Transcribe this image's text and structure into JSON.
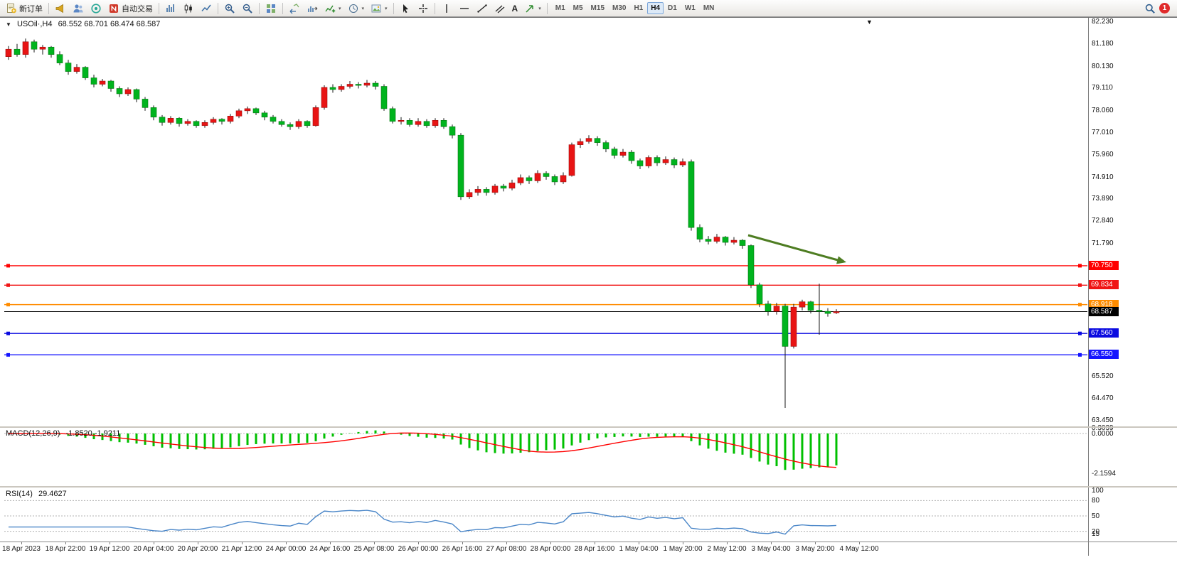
{
  "toolbar": {
    "new_order_label": "新订单",
    "auto_trading_label": "自动交易",
    "text_tool_label": "A",
    "timeframes": [
      "M1",
      "M5",
      "M15",
      "M30",
      "H1",
      "H4",
      "D1",
      "W1",
      "MN"
    ],
    "active_timeframe": "H4",
    "notification_count": "1"
  },
  "chart": {
    "collapse_glyph": "▼",
    "symbol": "USOil·,H4",
    "ohlc": "68.552 68.701 68.474 68.587",
    "price_axis_labels": [
      "82.230",
      "81.180",
      "80.130",
      "79.110",
      "78.060",
      "77.010",
      "75.960",
      "74.910",
      "73.890",
      "72.840",
      "71.790",
      "65.520",
      "64.470",
      "63.450"
    ],
    "price_lines": [
      {
        "price": "70.750",
        "color": "#ff0000"
      },
      {
        "price": "69.834",
        "color": "#f01414"
      },
      {
        "price": "68.918",
        "color": "#ff8c00"
      },
      {
        "price": "67.560",
        "color": "#0a0ae0"
      },
      {
        "price": "66.550",
        "color": "#1414ff"
      }
    ],
    "current_price": {
      "value": "68.587",
      "color": "#000000"
    },
    "colors": {
      "up_candle": "#e81414",
      "up_border": "#9e0b0b",
      "down_candle": "#00b41e",
      "down_border": "#067812",
      "wick": "#1a1a1a",
      "arrow": "#4e7d22"
    },
    "candles": [
      [
        80.6,
        81.1,
        80.45,
        80.95
      ],
      [
        80.95,
        81.2,
        80.6,
        80.7
      ],
      [
        80.7,
        81.45,
        80.55,
        81.3
      ],
      [
        81.3,
        81.4,
        80.8,
        80.95
      ],
      [
        80.95,
        81.15,
        80.7,
        81.05
      ],
      [
        81.05,
        81.1,
        80.55,
        80.7
      ],
      [
        80.7,
        80.85,
        80.2,
        80.3
      ],
      [
        80.3,
        80.45,
        79.75,
        79.9
      ],
      [
        79.9,
        80.25,
        79.8,
        80.1
      ],
      [
        80.1,
        80.15,
        79.5,
        79.6
      ],
      [
        79.6,
        79.75,
        79.15,
        79.3
      ],
      [
        79.3,
        79.55,
        79.2,
        79.45
      ],
      [
        79.45,
        79.5,
        78.95,
        79.1
      ],
      [
        79.1,
        79.2,
        78.7,
        78.85
      ],
      [
        78.85,
        79.15,
        78.75,
        79.05
      ],
      [
        79.05,
        79.1,
        78.45,
        78.6
      ],
      [
        78.6,
        78.7,
        78.05,
        78.2
      ],
      [
        78.2,
        78.3,
        77.6,
        77.75
      ],
      [
        77.75,
        77.85,
        77.35,
        77.5
      ],
      [
        77.5,
        77.8,
        77.4,
        77.7
      ],
      [
        77.7,
        77.75,
        77.3,
        77.45
      ],
      [
        77.45,
        77.65,
        77.35,
        77.55
      ],
      [
        77.55,
        77.6,
        77.25,
        77.35
      ],
      [
        77.35,
        77.6,
        77.25,
        77.5
      ],
      [
        77.5,
        77.75,
        77.4,
        77.65
      ],
      [
        77.65,
        77.7,
        77.4,
        77.55
      ],
      [
        77.55,
        77.9,
        77.45,
        77.8
      ],
      [
        77.8,
        78.15,
        77.7,
        78.05
      ],
      [
        78.05,
        78.25,
        77.9,
        78.15
      ],
      [
        78.15,
        78.2,
        77.85,
        77.95
      ],
      [
        77.95,
        78.05,
        77.6,
        77.75
      ],
      [
        77.75,
        77.85,
        77.45,
        77.55
      ],
      [
        77.55,
        77.65,
        77.3,
        77.4
      ],
      [
        77.4,
        77.5,
        77.15,
        77.3
      ],
      [
        77.3,
        77.65,
        77.2,
        77.55
      ],
      [
        77.55,
        77.6,
        77.25,
        77.35
      ],
      [
        77.35,
        78.3,
        77.3,
        78.2
      ],
      [
        78.2,
        79.25,
        78.1,
        79.15
      ],
      [
        79.15,
        79.3,
        78.9,
        79.05
      ],
      [
        79.05,
        79.3,
        78.95,
        79.2
      ],
      [
        79.2,
        79.45,
        79.1,
        79.3
      ],
      [
        79.3,
        79.4,
        79.1,
        79.25
      ],
      [
        79.25,
        79.5,
        79.15,
        79.35
      ],
      [
        79.35,
        79.45,
        79.05,
        79.2
      ],
      [
        79.2,
        79.3,
        78.05,
        78.15
      ],
      [
        78.15,
        78.25,
        77.45,
        77.55
      ],
      [
        77.55,
        77.75,
        77.4,
        77.6
      ],
      [
        77.6,
        77.7,
        77.3,
        77.4
      ],
      [
        77.4,
        77.7,
        77.3,
        77.55
      ],
      [
        77.55,
        77.65,
        77.25,
        77.35
      ],
      [
        77.35,
        77.7,
        77.25,
        77.6
      ],
      [
        77.6,
        77.7,
        77.2,
        77.3
      ],
      [
        77.3,
        77.4,
        76.75,
        76.9
      ],
      [
        76.9,
        77.0,
        73.85,
        74.0
      ],
      [
        74.0,
        74.35,
        73.9,
        74.2
      ],
      [
        74.2,
        74.5,
        74.05,
        74.35
      ],
      [
        74.35,
        74.45,
        74.05,
        74.2
      ],
      [
        74.2,
        74.6,
        74.1,
        74.5
      ],
      [
        74.5,
        74.6,
        74.25,
        74.4
      ],
      [
        74.4,
        74.8,
        74.3,
        74.65
      ],
      [
        74.65,
        75.05,
        74.55,
        74.9
      ],
      [
        74.9,
        75.0,
        74.6,
        74.75
      ],
      [
        74.75,
        75.25,
        74.65,
        75.1
      ],
      [
        75.1,
        75.2,
        74.8,
        74.95
      ],
      [
        74.95,
        75.05,
        74.55,
        74.7
      ],
      [
        74.7,
        75.15,
        74.6,
        75.0
      ],
      [
        75.0,
        76.55,
        74.95,
        76.45
      ],
      [
        76.45,
        76.75,
        76.3,
        76.6
      ],
      [
        76.6,
        76.9,
        76.5,
        76.75
      ],
      [
        76.75,
        76.85,
        76.4,
        76.55
      ],
      [
        76.55,
        76.65,
        76.1,
        76.25
      ],
      [
        76.25,
        76.35,
        75.8,
        75.95
      ],
      [
        75.95,
        76.25,
        75.85,
        76.1
      ],
      [
        76.1,
        76.2,
        75.55,
        75.7
      ],
      [
        75.7,
        75.8,
        75.3,
        75.45
      ],
      [
        75.45,
        75.95,
        75.35,
        75.85
      ],
      [
        75.85,
        75.95,
        75.45,
        75.6
      ],
      [
        75.6,
        75.9,
        75.5,
        75.75
      ],
      [
        75.75,
        75.85,
        75.35,
        75.5
      ],
      [
        75.5,
        75.8,
        75.4,
        75.65
      ],
      [
        75.65,
        75.75,
        72.4,
        72.55
      ],
      [
        72.55,
        72.7,
        71.85,
        72.0
      ],
      [
        72.0,
        72.15,
        71.75,
        71.9
      ],
      [
        71.9,
        72.25,
        71.8,
        72.1
      ],
      [
        72.1,
        72.15,
        71.7,
        71.85
      ],
      [
        71.85,
        72.1,
        71.75,
        71.95
      ],
      [
        71.95,
        72.0,
        71.55,
        71.7
      ],
      [
        71.7,
        71.75,
        69.7,
        69.85
      ],
      [
        69.85,
        69.95,
        68.8,
        68.95
      ],
      [
        68.95,
        69.1,
        68.4,
        68.6
      ],
      [
        68.6,
        69.0,
        68.45,
        68.85
      ],
      [
        68.85,
        68.95,
        64.05,
        66.95
      ],
      [
        66.95,
        68.95,
        66.85,
        68.8
      ],
      [
        68.8,
        69.15,
        68.65,
        69.05
      ],
      [
        69.05,
        69.1,
        68.5,
        68.65
      ],
      [
        68.65,
        69.9,
        67.5,
        68.6
      ],
      [
        68.6,
        68.75,
        68.35,
        68.5
      ],
      [
        68.552,
        68.701,
        68.474,
        68.587
      ]
    ]
  },
  "macd": {
    "title": "MACD(12,26,9)",
    "values": "-1.8520 -1.9211",
    "scale_labels": [
      "0.3039",
      "0.0000",
      "-2.1594"
    ],
    "histogram_color": "#00c000",
    "signal_color": "#ff0000"
  },
  "rsi": {
    "title": "RSI(14)",
    "value": "29.4627",
    "scale_labels": [
      "100",
      "80",
      "50",
      "20",
      "15"
    ],
    "level_lines": [
      80,
      50,
      20
    ],
    "line_color": "#4a86c8"
  },
  "time_axis": {
    "labels": [
      "18 Apr 2023",
      "18 Apr 22:00",
      "19 Apr 12:00",
      "20 Apr 04:00",
      "20 Apr 20:00",
      "21 Apr 12:00",
      "24 Apr 00:00",
      "24 Apr 16:00",
      "25 Apr 08:00",
      "26 Apr 00:00",
      "26 Apr 16:00",
      "27 Apr 08:00",
      "28 Apr 00:00",
      "28 Apr 16:00",
      "1 May 04:00",
      "1 May 20:00",
      "2 May 12:00",
      "3 May 04:00",
      "3 May 20:00",
      "4 May 12:00"
    ]
  }
}
